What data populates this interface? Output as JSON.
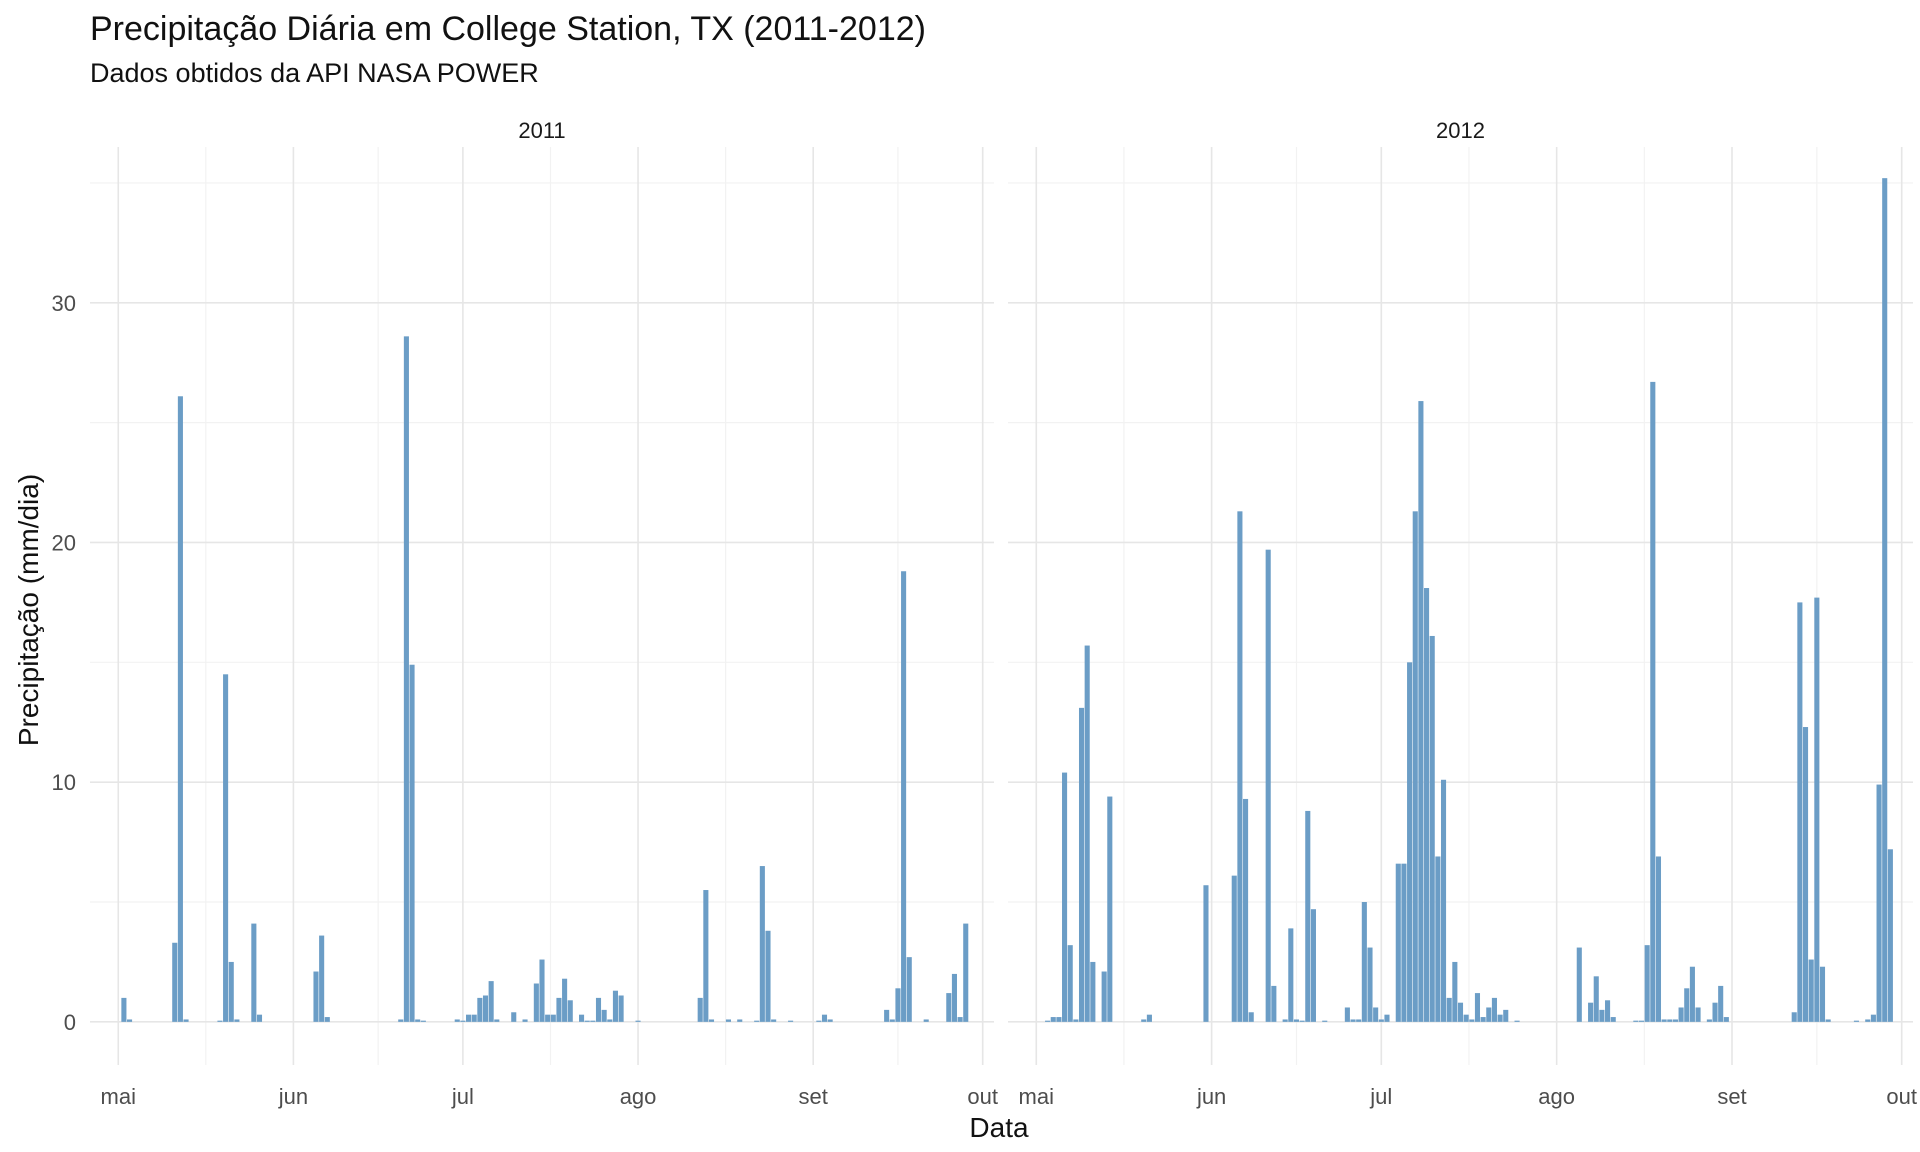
{
  "chart_data": {
    "type": "bar",
    "title": "Precipitação Diária em College Station, TX (2011-2012)",
    "subtitle": "Dados obtidos da API NASA POWER",
    "xlabel": "Data",
    "ylabel": "Precipitação (mm/dia)",
    "ylim": [
      -1.8,
      36.5
    ],
    "yticks": [
      0,
      10,
      20,
      30
    ],
    "xlim": [
      "2011-04-26",
      "2011-10-03"
    ],
    "xticks": [
      {
        "date": "2011-05-01",
        "label": "mai"
      },
      {
        "date": "2011-06-01",
        "label": "jun"
      },
      {
        "date": "2011-07-01",
        "label": "jul"
      },
      {
        "date": "2011-08-01",
        "label": "ago"
      },
      {
        "date": "2011-09-01",
        "label": "set"
      },
      {
        "date": "2011-10-01",
        "label": "out"
      }
    ],
    "grid": true,
    "bar_color": "#6b9dc6",
    "facets": [
      {
        "label": "2011",
        "bars": [
          [
            "2011-05-02",
            1.0
          ],
          [
            "2011-05-03",
            0.1
          ],
          [
            "2011-05-11",
            3.3
          ],
          [
            "2011-05-12",
            26.1
          ],
          [
            "2011-05-13",
            0.1
          ],
          [
            "2011-05-19",
            0.05
          ],
          [
            "2011-05-20",
            14.5
          ],
          [
            "2011-05-21",
            2.5
          ],
          [
            "2011-05-22",
            0.1
          ],
          [
            "2011-05-25",
            4.1
          ],
          [
            "2011-05-26",
            0.3
          ],
          [
            "2011-06-05",
            2.1
          ],
          [
            "2011-06-06",
            3.6
          ],
          [
            "2011-06-07",
            0.2
          ],
          [
            "2011-06-20",
            0.1
          ],
          [
            "2011-06-21",
            28.6
          ],
          [
            "2011-06-22",
            14.9
          ],
          [
            "2011-06-23",
            0.1
          ],
          [
            "2011-06-24",
            0.05
          ],
          [
            "2011-06-30",
            0.1
          ],
          [
            "2011-07-01",
            0.05
          ],
          [
            "2011-07-02",
            0.3
          ],
          [
            "2011-07-03",
            0.3
          ],
          [
            "2011-07-04",
            1.0
          ],
          [
            "2011-07-05",
            1.1
          ],
          [
            "2011-07-06",
            1.7
          ],
          [
            "2011-07-07",
            0.1
          ],
          [
            "2011-07-10",
            0.4
          ],
          [
            "2011-07-12",
            0.1
          ],
          [
            "2011-07-14",
            1.6
          ],
          [
            "2011-07-15",
            2.6
          ],
          [
            "2011-07-16",
            0.3
          ],
          [
            "2011-07-17",
            0.3
          ],
          [
            "2011-07-18",
            1.0
          ],
          [
            "2011-07-19",
            1.8
          ],
          [
            "2011-07-20",
            0.9
          ],
          [
            "2011-07-22",
            0.3
          ],
          [
            "2011-07-23",
            0.05
          ],
          [
            "2011-07-24",
            0.05
          ],
          [
            "2011-07-25",
            1.0
          ],
          [
            "2011-07-26",
            0.5
          ],
          [
            "2011-07-27",
            0.1
          ],
          [
            "2011-07-28",
            1.3
          ],
          [
            "2011-07-29",
            1.1
          ],
          [
            "2011-08-01",
            0.05
          ],
          [
            "2011-08-12",
            1.0
          ],
          [
            "2011-08-13",
            5.5
          ],
          [
            "2011-08-14",
            0.1
          ],
          [
            "2011-08-17",
            0.1
          ],
          [
            "2011-08-19",
            0.1
          ],
          [
            "2011-08-22",
            0.05
          ],
          [
            "2011-08-23",
            6.5
          ],
          [
            "2011-08-24",
            3.8
          ],
          [
            "2011-08-25",
            0.1
          ],
          [
            "2011-08-28",
            0.05
          ],
          [
            "2011-09-02",
            0.05
          ],
          [
            "2011-09-03",
            0.3
          ],
          [
            "2011-09-04",
            0.1
          ],
          [
            "2011-09-14",
            0.5
          ],
          [
            "2011-09-15",
            0.1
          ],
          [
            "2011-09-16",
            1.4
          ],
          [
            "2011-09-17",
            18.8
          ],
          [
            "2011-09-18",
            2.7
          ],
          [
            "2011-09-21",
            0.1
          ],
          [
            "2011-09-25",
            1.2
          ],
          [
            "2011-09-26",
            2.0
          ],
          [
            "2011-09-27",
            0.2
          ],
          [
            "2011-09-28",
            4.1
          ]
        ]
      },
      {
        "label": "2012",
        "bars": [
          [
            "2012-05-03",
            0.05
          ],
          [
            "2012-05-04",
            0.2
          ],
          [
            "2012-05-05",
            0.2
          ],
          [
            "2012-05-06",
            10.4
          ],
          [
            "2012-05-07",
            3.2
          ],
          [
            "2012-05-08",
            0.1
          ],
          [
            "2012-05-09",
            13.1
          ],
          [
            "2012-05-10",
            15.7
          ],
          [
            "2012-05-11",
            2.5
          ],
          [
            "2012-05-13",
            2.1
          ],
          [
            "2012-05-14",
            9.4
          ],
          [
            "2012-05-20",
            0.1
          ],
          [
            "2012-05-21",
            0.3
          ],
          [
            "2012-05-31",
            5.7
          ],
          [
            "2012-06-05",
            6.1
          ],
          [
            "2012-06-06",
            21.3
          ],
          [
            "2012-06-07",
            9.3
          ],
          [
            "2012-06-08",
            0.4
          ],
          [
            "2012-06-11",
            19.7
          ],
          [
            "2012-06-12",
            1.5
          ],
          [
            "2012-06-14",
            0.1
          ],
          [
            "2012-06-15",
            3.9
          ],
          [
            "2012-06-16",
            0.1
          ],
          [
            "2012-06-17",
            0.05
          ],
          [
            "2012-06-18",
            8.8
          ],
          [
            "2012-06-19",
            4.7
          ],
          [
            "2012-06-21",
            0.05
          ],
          [
            "2012-06-25",
            0.6
          ],
          [
            "2012-06-26",
            0.1
          ],
          [
            "2012-06-27",
            0.1
          ],
          [
            "2012-06-28",
            5.0
          ],
          [
            "2012-06-29",
            3.1
          ],
          [
            "2012-06-30",
            0.6
          ],
          [
            "2012-07-01",
            0.1
          ],
          [
            "2012-07-02",
            0.3
          ],
          [
            "2012-07-04",
            6.6
          ],
          [
            "2012-07-05",
            6.6
          ],
          [
            "2012-07-06",
            15.0
          ],
          [
            "2012-07-07",
            21.3
          ],
          [
            "2012-07-08",
            25.9
          ],
          [
            "2012-07-09",
            18.1
          ],
          [
            "2012-07-10",
            16.1
          ],
          [
            "2012-07-11",
            6.9
          ],
          [
            "2012-07-12",
            10.1
          ],
          [
            "2012-07-13",
            1.0
          ],
          [
            "2012-07-14",
            2.5
          ],
          [
            "2012-07-15",
            0.8
          ],
          [
            "2012-07-16",
            0.3
          ],
          [
            "2012-07-17",
            0.1
          ],
          [
            "2012-07-18",
            1.2
          ],
          [
            "2012-07-19",
            0.2
          ],
          [
            "2012-07-20",
            0.6
          ],
          [
            "2012-07-21",
            1.0
          ],
          [
            "2012-07-22",
            0.3
          ],
          [
            "2012-07-23",
            0.5
          ],
          [
            "2012-07-25",
            0.05
          ],
          [
            "2012-08-05",
            3.1
          ],
          [
            "2012-08-07",
            0.8
          ],
          [
            "2012-08-08",
            1.9
          ],
          [
            "2012-08-09",
            0.5
          ],
          [
            "2012-08-10",
            0.9
          ],
          [
            "2012-08-11",
            0.2
          ],
          [
            "2012-08-15",
            0.05
          ],
          [
            "2012-08-16",
            0.05
          ],
          [
            "2012-08-17",
            3.2
          ],
          [
            "2012-08-18",
            26.7
          ],
          [
            "2012-08-19",
            6.9
          ],
          [
            "2012-08-20",
            0.1
          ],
          [
            "2012-08-21",
            0.1
          ],
          [
            "2012-08-22",
            0.1
          ],
          [
            "2012-08-23",
            0.6
          ],
          [
            "2012-08-24",
            1.4
          ],
          [
            "2012-08-25",
            2.3
          ],
          [
            "2012-08-26",
            0.6
          ],
          [
            "2012-08-28",
            0.1
          ],
          [
            "2012-08-29",
            0.8
          ],
          [
            "2012-08-30",
            1.5
          ],
          [
            "2012-08-31",
            0.2
          ],
          [
            "2012-09-12",
            0.4
          ],
          [
            "2012-09-13",
            17.5
          ],
          [
            "2012-09-14",
            12.3
          ],
          [
            "2012-09-15",
            2.6
          ],
          [
            "2012-09-16",
            17.7
          ],
          [
            "2012-09-17",
            2.3
          ],
          [
            "2012-09-18",
            0.1
          ],
          [
            "2012-09-23",
            0.05
          ],
          [
            "2012-09-25",
            0.1
          ],
          [
            "2012-09-26",
            0.3
          ],
          [
            "2012-09-27",
            9.9
          ],
          [
            "2012-09-28",
            35.2
          ],
          [
            "2012-09-29",
            7.2
          ]
        ]
      }
    ]
  }
}
